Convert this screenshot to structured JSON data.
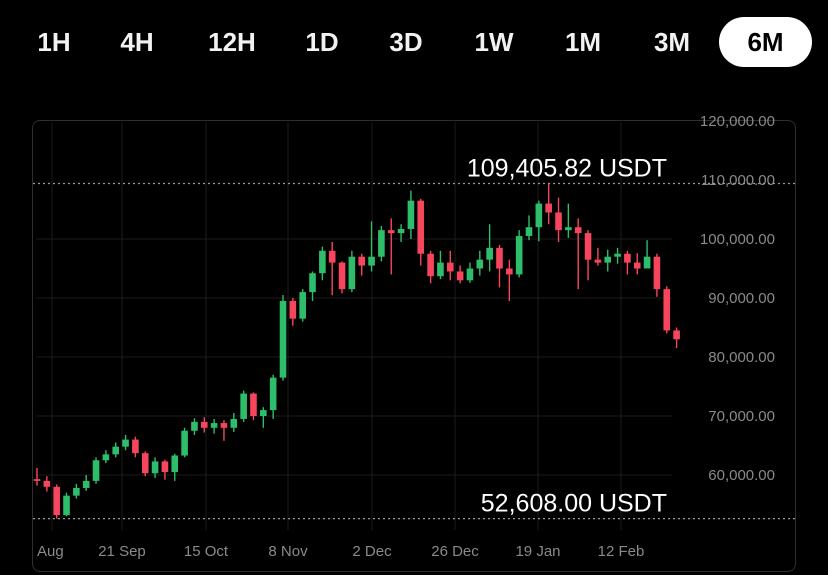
{
  "timeframes": {
    "items": [
      "1H",
      "4H",
      "12H",
      "1D",
      "3D",
      "1W",
      "1M",
      "3M",
      "6M"
    ],
    "active": "6M"
  },
  "chart_data": {
    "type": "candlestick",
    "quote": "USDT",
    "y_ticks": [
      "120,000.00",
      "110,000.00",
      "100,000.00",
      "90,000.00",
      "80,000.00",
      "70,000.00",
      "60,000.00"
    ],
    "y_tick_values": [
      120000,
      110000,
      100000,
      90000,
      80000,
      70000,
      60000
    ],
    "x_ticks": [
      "Aug",
      "21 Sep",
      "15 Oct",
      "8 Nov",
      "2 Dec",
      "26 Dec",
      "19 Jan",
      "12 Feb"
    ],
    "high_label": "109,405.82 USDT",
    "low_label": "52,608.00 USDT",
    "high_value": 109405.82,
    "low_value": 52608.0,
    "up_color": "#2ebd6b",
    "down_color": "#f6465d",
    "candles": [
      [
        59300,
        59000,
        61200,
        58200
      ],
      [
        59000,
        58000,
        59800,
        57200
      ],
      [
        58000,
        53200,
        58400,
        52608
      ],
      [
        53200,
        56500,
        57000,
        53000
      ],
      [
        56500,
        57800,
        58500,
        56000
      ],
      [
        57800,
        59000,
        60000,
        57300
      ],
      [
        59000,
        62500,
        63000,
        58500
      ],
      [
        62500,
        63500,
        64200,
        62000
      ],
      [
        63500,
        64800,
        65500,
        63000
      ],
      [
        64800,
        66000,
        66800,
        64200
      ],
      [
        66000,
        63700,
        66500,
        63000
      ],
      [
        63700,
        60300,
        64000,
        59800
      ],
      [
        60300,
        62300,
        63000,
        59500
      ],
      [
        62300,
        60500,
        62600,
        59200
      ],
      [
        60500,
        63300,
        63600,
        59000
      ],
      [
        63300,
        67500,
        68000,
        63000
      ],
      [
        67500,
        69000,
        69600,
        66800
      ],
      [
        69000,
        68000,
        69800,
        67200
      ],
      [
        68000,
        68800,
        69500,
        67000
      ],
      [
        68800,
        68000,
        69300,
        65800
      ],
      [
        68000,
        69500,
        70500,
        67300
      ],
      [
        69500,
        73800,
        74300,
        69000
      ],
      [
        73800,
        70000,
        74000,
        69300
      ],
      [
        70000,
        71000,
        71500,
        68000
      ],
      [
        71000,
        76500,
        77000,
        69500
      ],
      [
        76500,
        89500,
        90500,
        76000
      ],
      [
        89500,
        86500,
        90000,
        85300
      ],
      [
        86500,
        91000,
        91500,
        86000
      ],
      [
        91000,
        94200,
        94500,
        89500
      ],
      [
        94200,
        98000,
        98700,
        93000
      ],
      [
        98000,
        96000,
        99500,
        90500
      ],
      [
        96000,
        91500,
        96200,
        90800
      ],
      [
        91500,
        97000,
        98000,
        91000
      ],
      [
        97000,
        95500,
        97500,
        93800
      ],
      [
        95500,
        97000,
        103000,
        94500
      ],
      [
        97000,
        101500,
        102200,
        96200
      ],
      [
        101500,
        101000,
        103500,
        94000
      ],
      [
        101000,
        101700,
        102500,
        99500
      ],
      [
        101700,
        106500,
        108200,
        100000
      ],
      [
        106500,
        97500,
        106800,
        95500
      ],
      [
        97500,
        93700,
        98000,
        92500
      ],
      [
        93700,
        96000,
        98000,
        93200
      ],
      [
        96000,
        94500,
        98000,
        93000
      ],
      [
        94500,
        93000,
        95500,
        92500
      ],
      [
        93000,
        95000,
        96000,
        92600
      ],
      [
        95000,
        96500,
        98000,
        93800
      ],
      [
        96500,
        98500,
        102500,
        94500
      ],
      [
        98500,
        95000,
        99000,
        91800
      ],
      [
        95000,
        94000,
        96500,
        89500
      ],
      [
        94000,
        100500,
        101500,
        93500
      ],
      [
        100500,
        102000,
        104000,
        99800
      ],
      [
        102000,
        106000,
        106500,
        99600
      ],
      [
        106000,
        104500,
        109405.82,
        102500
      ],
      [
        104500,
        101500,
        107000,
        99500
      ],
      [
        101500,
        102000,
        106000,
        100200
      ],
      [
        102000,
        101000,
        103500,
        91500
      ],
      [
        101000,
        96500,
        101500,
        93000
      ],
      [
        96500,
        96000,
        98500,
        95500
      ],
      [
        96000,
        97000,
        98200,
        94500
      ],
      [
        97000,
        97500,
        98500,
        95800
      ],
      [
        97500,
        96000,
        98000,
        94000
      ],
      [
        96000,
        95000,
        97600,
        94000
      ],
      [
        95000,
        97000,
        99800,
        95800
      ],
      [
        97000,
        91500,
        97500,
        90200
      ],
      [
        91500,
        84500,
        92000,
        84000
      ],
      [
        84500,
        83000,
        85000,
        81500
      ]
    ]
  }
}
